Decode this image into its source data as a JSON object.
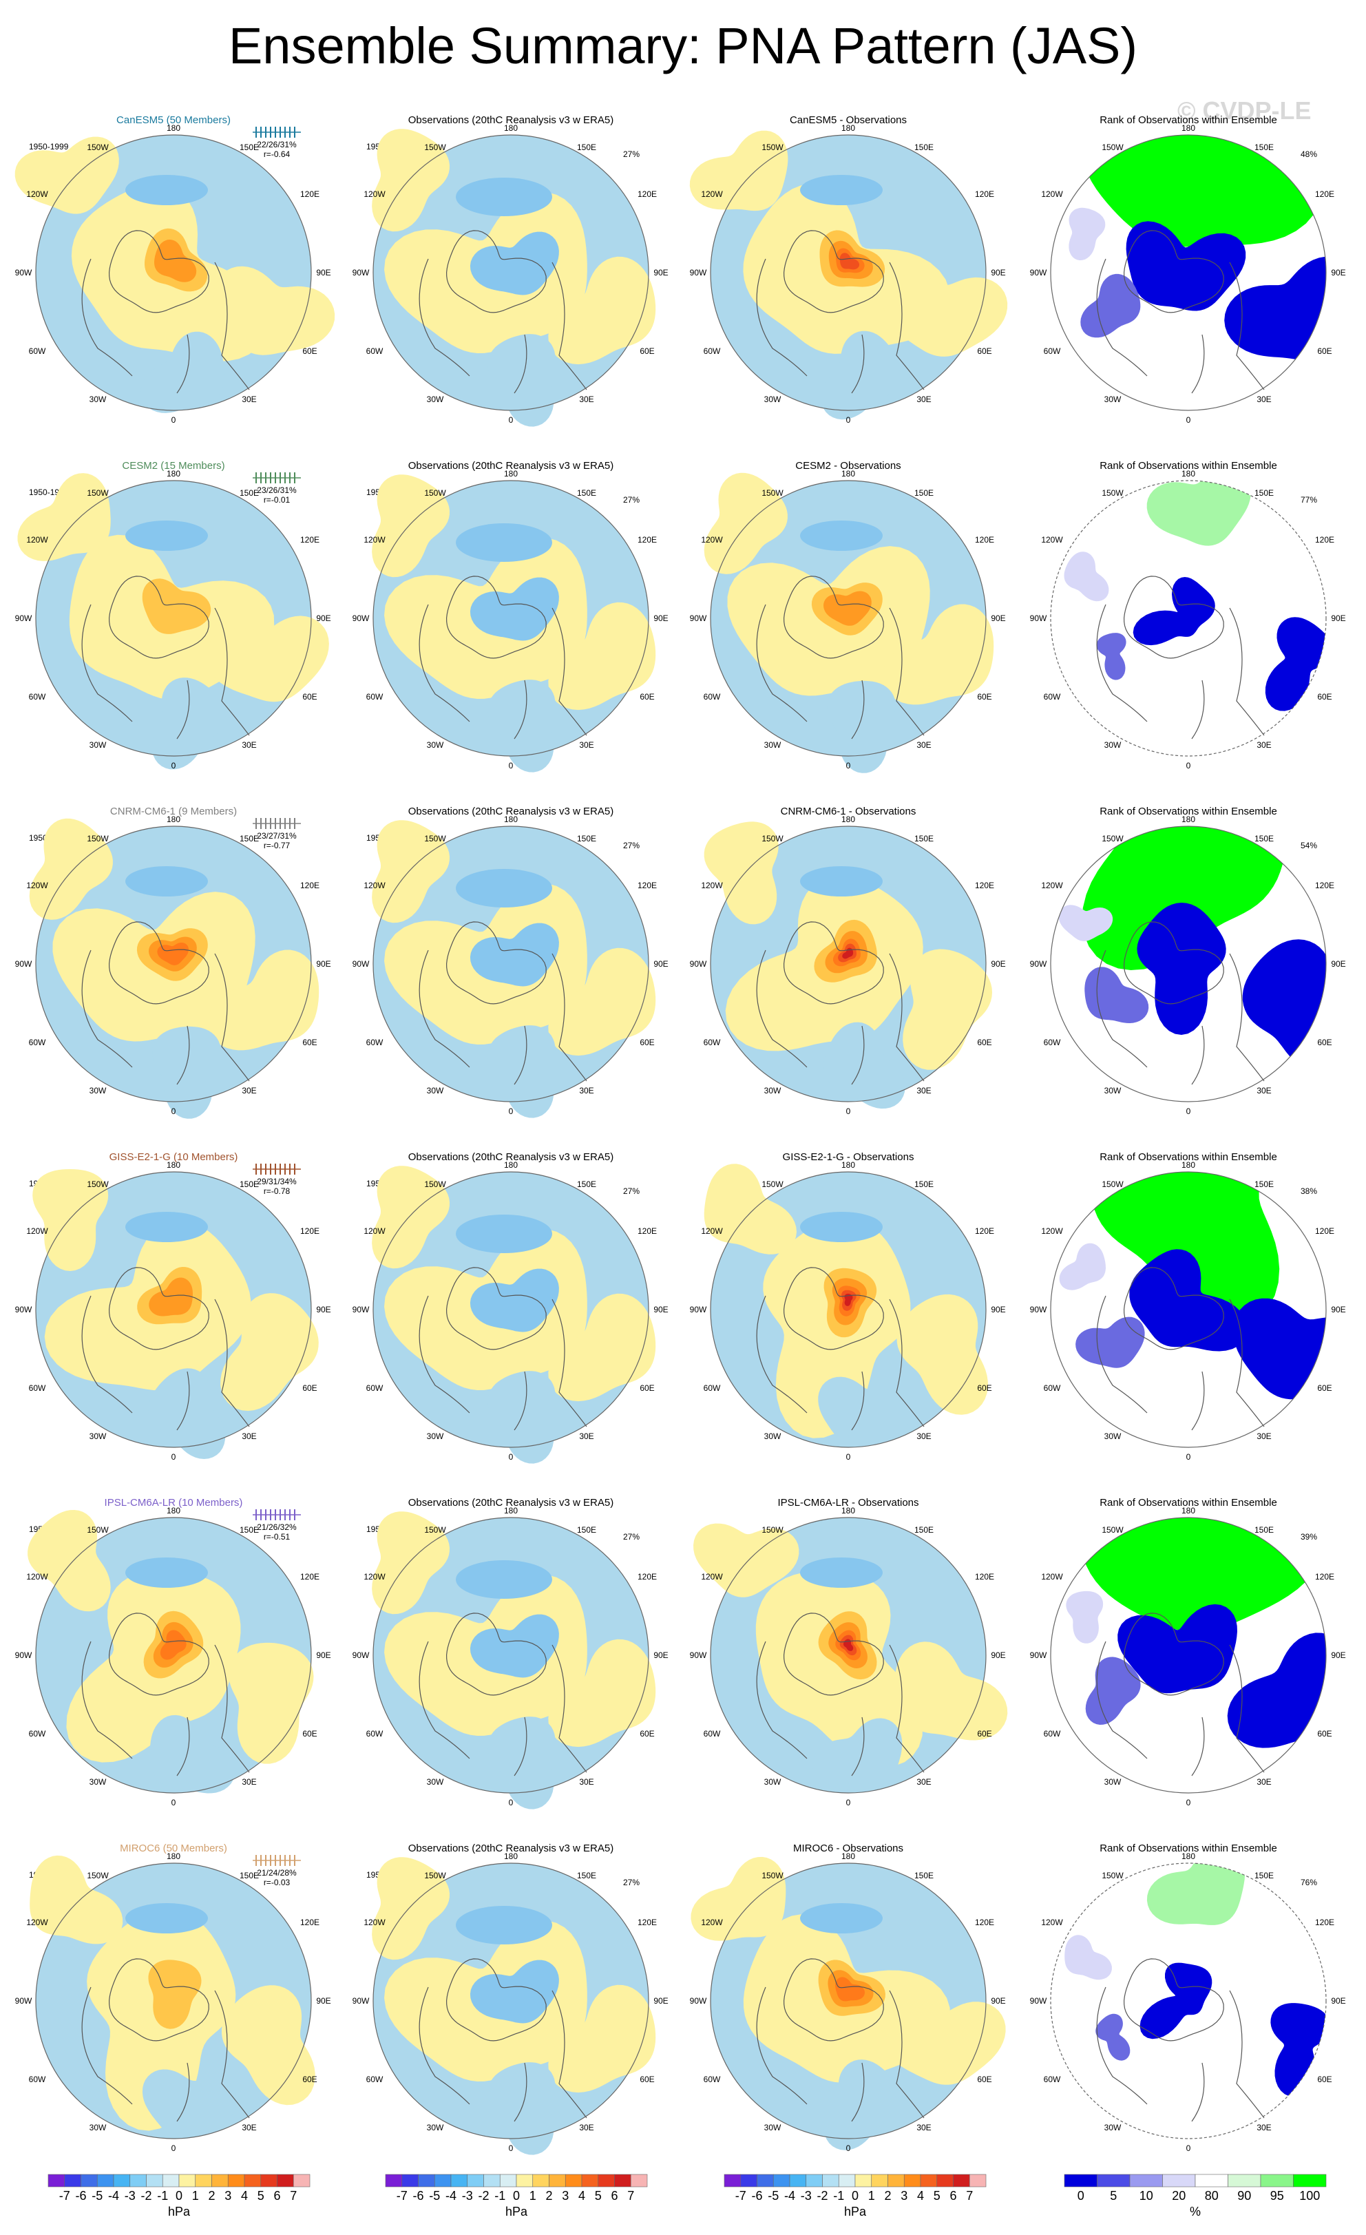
{
  "page": {
    "title": "Ensemble Summary: PNA Pattern (JAS)",
    "watermark": "© CVDP-LE"
  },
  "colors": {
    "ocean_neutral": "#add8ec",
    "land_neutral": "#fdf2a1",
    "blue_light": "#87c6ee",
    "blue_mid": "#47a9ef",
    "orange_light": "#ffc64a",
    "orange_mid": "#ff9a22",
    "red": "#f0501e",
    "rank_green": "#00ff00",
    "rank_lightgreen": "#a6f7a6",
    "rank_blue": "#0000dd",
    "rank_midblue": "#6a6ae0",
    "rank_paleblue": "#d8d8f8",
    "coast": "#555555"
  },
  "chart_data": {
    "type": "map",
    "projection": "north-polar-stereographic",
    "period": "1950-1999",
    "longitude_labels": [
      "180",
      "150W",
      "150E",
      "120W",
      "120E",
      "90W",
      "90E",
      "60W",
      "60E",
      "30W",
      "30E",
      "0"
    ],
    "observations_title": "Observations (20thC Reanalysis v3 w ERA5)",
    "observations_variance": "27%",
    "rank_title": "Rank of Observations within Ensemble",
    "rows": [
      {
        "model": "CanESM5",
        "title": "CanESM5 (50 Members)",
        "color": "#1a7a9e",
        "pct": "22/26/31%",
        "r": "r=-0.64",
        "diff_title": "CanESM5 - Observations",
        "rank_pct": "48%",
        "ensemble_max_hpa": 2,
        "diff_max_hpa": 4
      },
      {
        "model": "CESM2",
        "title": "CESM2 (15 Members)",
        "color": "#4e8c5a",
        "pct": "23/26/31%",
        "r": "r=-0.01",
        "diff_title": "CESM2 - Observations",
        "rank_pct": "77%",
        "ensemble_max_hpa": 1,
        "diff_max_hpa": 2
      },
      {
        "model": "CNRM-CM6-1",
        "title": "CNRM-CM6-1 (9 Members)",
        "color": "#808080",
        "pct": "23/27/31%",
        "r": "r=-0.77",
        "diff_title": "CNRM-CM6-1 - Observations",
        "rank_pct": "54%",
        "ensemble_max_hpa": 3,
        "diff_max_hpa": 5
      },
      {
        "model": "GISS-E2-1-G",
        "title": "GISS-E2-1-G (10 Members)",
        "color": "#a0522d",
        "pct": "29/31/34%",
        "r": "r=-0.78",
        "diff_title": "GISS-E2-1-G - Observations",
        "rank_pct": "38%",
        "ensemble_max_hpa": 2,
        "diff_max_hpa": 5
      },
      {
        "model": "IPSL-CM6A-LR",
        "title": "IPSL-CM6A-LR (10 Members)",
        "color": "#7b5fc9",
        "pct": "21/26/32%",
        "r": "r=-0.51",
        "diff_title": "IPSL-CM6A-LR - Observations",
        "rank_pct": "39%",
        "ensemble_max_hpa": 3,
        "diff_max_hpa": 5
      },
      {
        "model": "MIROC6",
        "title": "MIROC6 (50 Members)",
        "color": "#d2a06e",
        "pct": "21/24/28%",
        "r": "r=-0.03",
        "diff_title": "MIROC6 - Observations",
        "rank_pct": "76%",
        "ensemble_max_hpa": 1,
        "diff_max_hpa": 3
      }
    ],
    "colorbars": [
      {
        "unit": "hPa",
        "labels": [
          "-7",
          "-6",
          "-5",
          "-4",
          "-3",
          "-2",
          "-1",
          "0",
          "1",
          "2",
          "3",
          "4",
          "5",
          "6",
          "7"
        ],
        "colors": [
          "#7a1fd6",
          "#3a3ae8",
          "#3f6ee8",
          "#3d93f0",
          "#47b4f3",
          "#7fcdf5",
          "#b3e0f4",
          "#d8eef3",
          "#fdf2a1",
          "#ffd45e",
          "#ffb43a",
          "#ff8c1a",
          "#f5621e",
          "#e63a1e",
          "#d01e1e",
          "#f7b4b4"
        ]
      },
      {
        "unit": "hPa",
        "labels": [
          "-7",
          "-6",
          "-5",
          "-4",
          "-3",
          "-2",
          "-1",
          "0",
          "1",
          "2",
          "3",
          "4",
          "5",
          "6",
          "7"
        ],
        "colors": [
          "#7a1fd6",
          "#3a3ae8",
          "#3f6ee8",
          "#3d93f0",
          "#47b4f3",
          "#7fcdf5",
          "#b3e0f4",
          "#d8eef3",
          "#fdf2a1",
          "#ffd45e",
          "#ffb43a",
          "#ff8c1a",
          "#f5621e",
          "#e63a1e",
          "#d01e1e",
          "#f7b4b4"
        ]
      },
      {
        "unit": "hPa",
        "labels": [
          "-7",
          "-6",
          "-5",
          "-4",
          "-3",
          "-2",
          "-1",
          "0",
          "1",
          "2",
          "3",
          "4",
          "5",
          "6",
          "7"
        ],
        "colors": [
          "#7a1fd6",
          "#3a3ae8",
          "#3f6ee8",
          "#3d93f0",
          "#47b4f3",
          "#7fcdf5",
          "#b3e0f4",
          "#d8eef3",
          "#fdf2a1",
          "#ffd45e",
          "#ffb43a",
          "#ff8c1a",
          "#f5621e",
          "#e63a1e",
          "#d01e1e",
          "#f7b4b4"
        ]
      },
      {
        "unit": "%",
        "labels": [
          "0",
          "5",
          "10",
          "20",
          "80",
          "90",
          "95",
          "100"
        ],
        "colors": [
          "#0000dd",
          "#4c4ce6",
          "#9a9af0",
          "#d8d8f8",
          "#ffffff",
          "#d6f8d6",
          "#8af58a",
          "#00ff00"
        ]
      }
    ]
  }
}
